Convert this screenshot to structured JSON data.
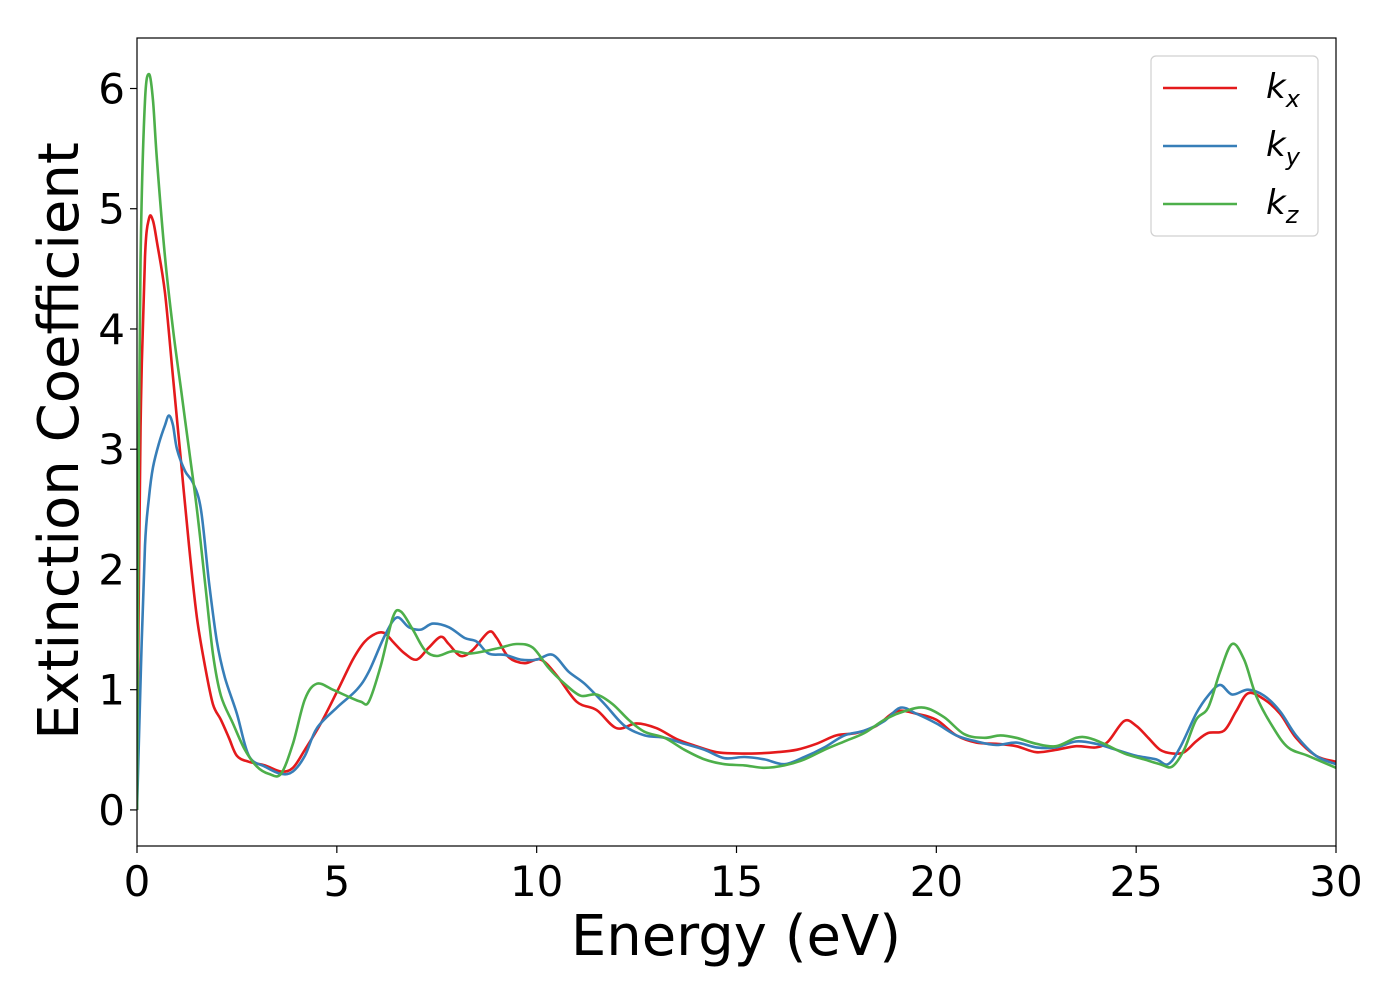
{
  "chart_data": {
    "type": "line",
    "title": "",
    "xlabel": "Energy (eV)",
    "ylabel": "Extinction Coefficient",
    "xlim": [
      0,
      30
    ],
    "ylim": [
      -0.3,
      6.42
    ],
    "xticks": [
      0,
      5,
      10,
      15,
      20,
      25,
      30
    ],
    "yticks": [
      0,
      1,
      2,
      3,
      4,
      5,
      6
    ],
    "grid": false,
    "legend_position": "top-right",
    "series": [
      {
        "name": "k",
        "subscript": "x",
        "color": "#e41a1c",
        "points": [
          [
            0,
            0
          ],
          [
            0.05,
            2.0
          ],
          [
            0.1,
            3.4
          ],
          [
            0.2,
            4.6
          ],
          [
            0.3,
            4.92
          ],
          [
            0.4,
            4.9
          ],
          [
            0.5,
            4.72
          ],
          [
            0.7,
            4.3
          ],
          [
            0.9,
            3.6
          ],
          [
            1.1,
            2.9
          ],
          [
            1.3,
            2.2
          ],
          [
            1.5,
            1.6
          ],
          [
            1.7,
            1.2
          ],
          [
            1.9,
            0.88
          ],
          [
            2.1,
            0.75
          ],
          [
            2.3,
            0.6
          ],
          [
            2.5,
            0.45
          ],
          [
            2.8,
            0.4
          ],
          [
            3.2,
            0.37
          ],
          [
            3.6,
            0.32
          ],
          [
            3.9,
            0.35
          ],
          [
            4.2,
            0.5
          ],
          [
            4.6,
            0.72
          ],
          [
            5.0,
            0.98
          ],
          [
            5.4,
            1.25
          ],
          [
            5.7,
            1.4
          ],
          [
            6.0,
            1.47
          ],
          [
            6.2,
            1.47
          ],
          [
            6.4,
            1.4
          ],
          [
            6.7,
            1.3
          ],
          [
            7.0,
            1.25
          ],
          [
            7.3,
            1.35
          ],
          [
            7.6,
            1.44
          ],
          [
            7.8,
            1.38
          ],
          [
            8.1,
            1.28
          ],
          [
            8.4,
            1.33
          ],
          [
            8.8,
            1.48
          ],
          [
            9.0,
            1.43
          ],
          [
            9.3,
            1.27
          ],
          [
            9.7,
            1.22
          ],
          [
            10.1,
            1.25
          ],
          [
            10.5,
            1.12
          ],
          [
            11.0,
            0.9
          ],
          [
            11.5,
            0.83
          ],
          [
            12.0,
            0.68
          ],
          [
            12.5,
            0.72
          ],
          [
            13.0,
            0.68
          ],
          [
            13.5,
            0.59
          ],
          [
            14.0,
            0.53
          ],
          [
            14.5,
            0.48
          ],
          [
            15.0,
            0.47
          ],
          [
            15.5,
            0.47
          ],
          [
            16.0,
            0.48
          ],
          [
            16.5,
            0.5
          ],
          [
            17.0,
            0.55
          ],
          [
            17.5,
            0.62
          ],
          [
            18.0,
            0.64
          ],
          [
            18.5,
            0.7
          ],
          [
            19.0,
            0.82
          ],
          [
            19.5,
            0.8
          ],
          [
            20.0,
            0.75
          ],
          [
            20.5,
            0.62
          ],
          [
            21.0,
            0.56
          ],
          [
            21.5,
            0.55
          ],
          [
            22.0,
            0.53
          ],
          [
            22.5,
            0.48
          ],
          [
            23.0,
            0.5
          ],
          [
            23.5,
            0.53
          ],
          [
            24.0,
            0.52
          ],
          [
            24.3,
            0.57
          ],
          [
            24.7,
            0.74
          ],
          [
            25.0,
            0.7
          ],
          [
            25.3,
            0.6
          ],
          [
            25.6,
            0.5
          ],
          [
            25.9,
            0.47
          ],
          [
            26.2,
            0.48
          ],
          [
            26.5,
            0.57
          ],
          [
            26.8,
            0.64
          ],
          [
            27.2,
            0.66
          ],
          [
            27.5,
            0.82
          ],
          [
            27.8,
            0.97
          ],
          [
            28.2,
            0.92
          ],
          [
            28.6,
            0.8
          ],
          [
            29.0,
            0.6
          ],
          [
            29.5,
            0.45
          ],
          [
            30.0,
            0.4
          ]
        ]
      },
      {
        "name": "k",
        "subscript": "y",
        "color": "#377eb8",
        "points": [
          [
            0,
            0
          ],
          [
            0.1,
            1.2
          ],
          [
            0.2,
            2.2
          ],
          [
            0.3,
            2.6
          ],
          [
            0.4,
            2.85
          ],
          [
            0.55,
            3.05
          ],
          [
            0.7,
            3.2
          ],
          [
            0.8,
            3.28
          ],
          [
            0.9,
            3.2
          ],
          [
            1.0,
            3.0
          ],
          [
            1.2,
            2.82
          ],
          [
            1.4,
            2.72
          ],
          [
            1.6,
            2.5
          ],
          [
            1.8,
            1.9
          ],
          [
            2.0,
            1.4
          ],
          [
            2.2,
            1.1
          ],
          [
            2.5,
            0.8
          ],
          [
            2.8,
            0.45
          ],
          [
            3.2,
            0.36
          ],
          [
            3.6,
            0.3
          ],
          [
            3.9,
            0.32
          ],
          [
            4.2,
            0.45
          ],
          [
            4.5,
            0.68
          ],
          [
            5.0,
            0.85
          ],
          [
            5.5,
            1.0
          ],
          [
            5.8,
            1.15
          ],
          [
            6.2,
            1.45
          ],
          [
            6.5,
            1.6
          ],
          [
            6.8,
            1.52
          ],
          [
            7.1,
            1.5
          ],
          [
            7.4,
            1.55
          ],
          [
            7.8,
            1.52
          ],
          [
            8.2,
            1.43
          ],
          [
            8.5,
            1.4
          ],
          [
            8.8,
            1.3
          ],
          [
            9.2,
            1.29
          ],
          [
            9.6,
            1.25
          ],
          [
            10.0,
            1.25
          ],
          [
            10.4,
            1.29
          ],
          [
            10.8,
            1.15
          ],
          [
            11.2,
            1.05
          ],
          [
            11.7,
            0.88
          ],
          [
            12.2,
            0.7
          ],
          [
            12.7,
            0.62
          ],
          [
            13.2,
            0.6
          ],
          [
            13.7,
            0.55
          ],
          [
            14.2,
            0.5
          ],
          [
            14.7,
            0.43
          ],
          [
            15.2,
            0.44
          ],
          [
            15.7,
            0.42
          ],
          [
            16.2,
            0.38
          ],
          [
            16.7,
            0.44
          ],
          [
            17.2,
            0.52
          ],
          [
            17.7,
            0.62
          ],
          [
            18.2,
            0.66
          ],
          [
            18.7,
            0.74
          ],
          [
            19.1,
            0.85
          ],
          [
            19.5,
            0.8
          ],
          [
            20.0,
            0.72
          ],
          [
            20.5,
            0.62
          ],
          [
            21.0,
            0.57
          ],
          [
            21.5,
            0.54
          ],
          [
            22.0,
            0.56
          ],
          [
            22.5,
            0.52
          ],
          [
            23.0,
            0.52
          ],
          [
            23.5,
            0.57
          ],
          [
            24.0,
            0.55
          ],
          [
            24.5,
            0.5
          ],
          [
            25.0,
            0.45
          ],
          [
            25.5,
            0.42
          ],
          [
            25.8,
            0.38
          ],
          [
            26.1,
            0.52
          ],
          [
            26.5,
            0.8
          ],
          [
            26.8,
            0.95
          ],
          [
            27.1,
            1.04
          ],
          [
            27.4,
            0.96
          ],
          [
            27.8,
            1.0
          ],
          [
            28.2,
            0.95
          ],
          [
            28.6,
            0.82
          ],
          [
            29.0,
            0.62
          ],
          [
            29.5,
            0.45
          ],
          [
            30.0,
            0.38
          ]
        ]
      },
      {
        "name": "k",
        "subscript": "z",
        "color": "#4daf4a",
        "points": [
          [
            0,
            0
          ],
          [
            0.05,
            3.2
          ],
          [
            0.1,
            4.8
          ],
          [
            0.2,
            5.9
          ],
          [
            0.3,
            6.12
          ],
          [
            0.4,
            5.9
          ],
          [
            0.5,
            5.4
          ],
          [
            0.7,
            4.6
          ],
          [
            0.9,
            4.0
          ],
          [
            1.1,
            3.5
          ],
          [
            1.3,
            3.0
          ],
          [
            1.5,
            2.5
          ],
          [
            1.7,
            1.9
          ],
          [
            1.9,
            1.3
          ],
          [
            2.1,
            0.95
          ],
          [
            2.4,
            0.72
          ],
          [
            2.7,
            0.5
          ],
          [
            3.0,
            0.36
          ],
          [
            3.3,
            0.3
          ],
          [
            3.6,
            0.3
          ],
          [
            3.9,
            0.55
          ],
          [
            4.2,
            0.92
          ],
          [
            4.5,
            1.05
          ],
          [
            4.9,
            1.0
          ],
          [
            5.3,
            0.94
          ],
          [
            5.6,
            0.9
          ],
          [
            5.8,
            0.9
          ],
          [
            6.1,
            1.2
          ],
          [
            6.4,
            1.6
          ],
          [
            6.6,
            1.65
          ],
          [
            6.9,
            1.5
          ],
          [
            7.2,
            1.33
          ],
          [
            7.5,
            1.28
          ],
          [
            7.9,
            1.32
          ],
          [
            8.3,
            1.3
          ],
          [
            8.7,
            1.32
          ],
          [
            9.1,
            1.35
          ],
          [
            9.5,
            1.38
          ],
          [
            9.9,
            1.35
          ],
          [
            10.3,
            1.18
          ],
          [
            10.7,
            1.05
          ],
          [
            11.1,
            0.95
          ],
          [
            11.5,
            0.96
          ],
          [
            11.9,
            0.88
          ],
          [
            12.3,
            0.75
          ],
          [
            12.7,
            0.65
          ],
          [
            13.2,
            0.6
          ],
          [
            13.7,
            0.5
          ],
          [
            14.2,
            0.42
          ],
          [
            14.7,
            0.38
          ],
          [
            15.2,
            0.37
          ],
          [
            15.7,
            0.35
          ],
          [
            16.2,
            0.37
          ],
          [
            16.7,
            0.42
          ],
          [
            17.2,
            0.5
          ],
          [
            17.7,
            0.57
          ],
          [
            18.2,
            0.64
          ],
          [
            18.7,
            0.75
          ],
          [
            19.2,
            0.82
          ],
          [
            19.7,
            0.85
          ],
          [
            20.2,
            0.77
          ],
          [
            20.7,
            0.63
          ],
          [
            21.2,
            0.6
          ],
          [
            21.6,
            0.62
          ],
          [
            22.0,
            0.6
          ],
          [
            22.5,
            0.55
          ],
          [
            23.0,
            0.53
          ],
          [
            23.5,
            0.6
          ],
          [
            23.8,
            0.6
          ],
          [
            24.2,
            0.55
          ],
          [
            24.7,
            0.47
          ],
          [
            25.2,
            0.42
          ],
          [
            25.6,
            0.38
          ],
          [
            25.9,
            0.36
          ],
          [
            26.2,
            0.5
          ],
          [
            26.5,
            0.75
          ],
          [
            26.8,
            0.85
          ],
          [
            27.1,
            1.15
          ],
          [
            27.4,
            1.38
          ],
          [
            27.7,
            1.25
          ],
          [
            28.0,
            0.95
          ],
          [
            28.4,
            0.7
          ],
          [
            28.8,
            0.52
          ],
          [
            29.3,
            0.45
          ],
          [
            30.0,
            0.35
          ]
        ]
      }
    ]
  }
}
